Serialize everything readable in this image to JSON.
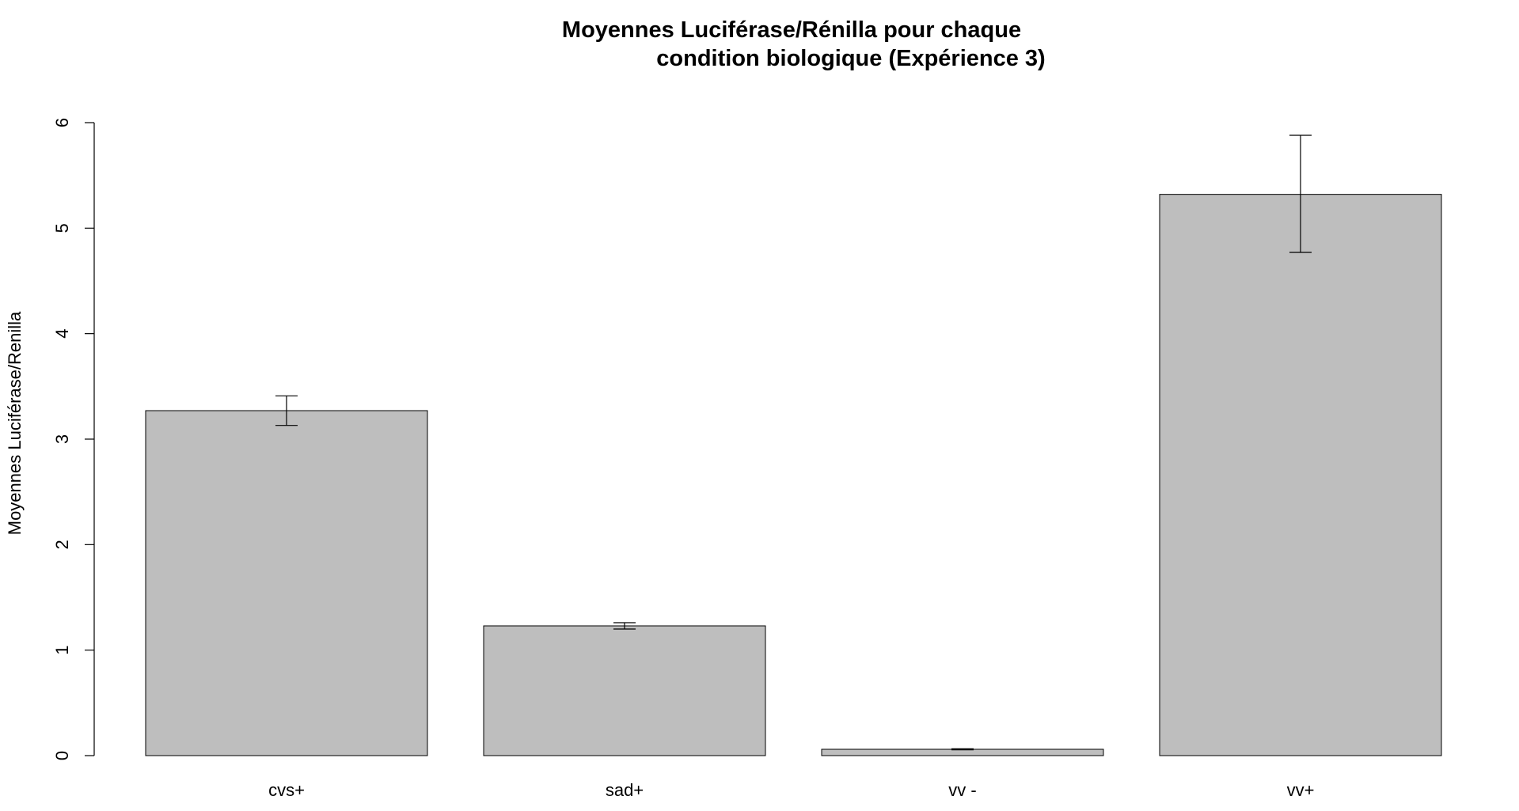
{
  "chart_data": {
    "type": "bar",
    "title_line1": "Moyennes Luciférase/Rénilla pour chaque",
    "title_line2": "condition biologique (Expérience 3)",
    "xlabel": "",
    "ylabel": "Moyennes Luciférase/Renilla",
    "categories": [
      "cvs+",
      "sad+",
      "vv -",
      "vv+"
    ],
    "values": [
      3.27,
      1.23,
      0.06,
      5.32
    ],
    "error_low": [
      3.13,
      1.2,
      0.055,
      4.77
    ],
    "error_high": [
      3.41,
      1.26,
      0.065,
      5.88
    ],
    "ylim": [
      0,
      6
    ],
    "yticks": [
      0,
      1,
      2,
      3,
      4,
      5,
      6
    ],
    "bar_color": "#bebebe",
    "bar_border": "#000000",
    "grid": false
  }
}
